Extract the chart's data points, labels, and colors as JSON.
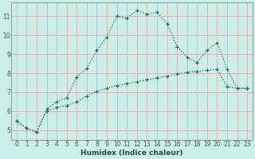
{
  "xlabel": "Humidex (Indice chaleur)",
  "bg_color": "#cceee8",
  "grid_color": "#d4b8b8",
  "line_color": "#1a7060",
  "xlim": [
    -0.5,
    23.5
  ],
  "ylim": [
    4.5,
    11.7
  ],
  "xticks": [
    0,
    1,
    2,
    3,
    4,
    5,
    6,
    7,
    8,
    9,
    10,
    11,
    12,
    13,
    14,
    15,
    16,
    17,
    18,
    19,
    20,
    21,
    22,
    23
  ],
  "yticks": [
    5,
    6,
    7,
    8,
    9,
    10,
    11
  ],
  "series1_x": [
    0,
    1,
    2,
    3,
    4,
    5,
    6,
    7,
    8,
    9,
    10,
    11,
    12,
    13,
    14,
    15,
    16,
    17,
    18,
    19,
    20,
    21,
    22,
    23
  ],
  "series1_y": [
    5.5,
    5.1,
    4.9,
    6.1,
    6.5,
    6.7,
    7.8,
    8.25,
    9.2,
    9.9,
    11.0,
    10.9,
    11.3,
    11.1,
    11.2,
    10.6,
    9.4,
    8.85,
    8.55,
    9.2,
    9.6,
    8.2,
    7.2,
    7.2
  ],
  "series2_x": [
    0,
    1,
    2,
    3,
    4,
    5,
    6,
    7,
    8,
    9,
    10,
    11,
    12,
    13,
    14,
    15,
    16,
    17,
    18,
    19,
    20,
    21,
    22,
    23
  ],
  "series2_y": [
    5.5,
    5.1,
    4.9,
    6.0,
    6.2,
    6.3,
    6.5,
    6.8,
    7.05,
    7.2,
    7.35,
    7.45,
    7.55,
    7.65,
    7.75,
    7.85,
    7.95,
    8.05,
    8.1,
    8.15,
    8.2,
    7.3,
    7.2,
    7.2
  ]
}
